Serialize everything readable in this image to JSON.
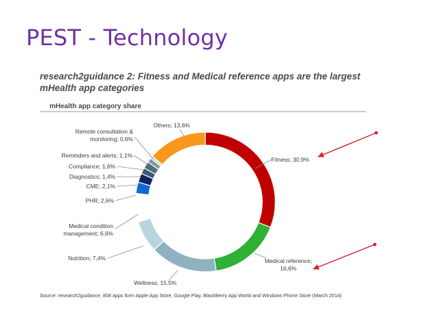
{
  "slide": {
    "title": "PEST - Technology"
  },
  "figure": {
    "heading_lines": [
      "research2guidance 2: Fitness and Medical reference apps are the largest",
      "mHealth app categories"
    ],
    "subheading": "mHealth app category share",
    "source": "Source: research2guidance,  808 apps form Apple App Store, Google Play, BlackBerry App World and Windows Phone Store (March 2014)"
  },
  "chart_data": {
    "type": "pie",
    "donut": true,
    "unit": "%",
    "slices": [
      {
        "label": "Fitness",
        "value": 30.9,
        "color": "#c00000",
        "label_lines": [
          "Fitness; 30,9%"
        ]
      },
      {
        "label": "Medical reference",
        "value": 16.6,
        "color": "#2eb135",
        "label_lines": [
          "Medical reference;",
          "16,6%"
        ]
      },
      {
        "label": "Wellness",
        "value": 15.5,
        "color": "#8fb2c0",
        "label_lines": [
          "Wellness; 15,5%"
        ]
      },
      {
        "label": "Nutrition",
        "value": 7.4,
        "color": "#b9d4df",
        "label_lines": [
          "Nutrition; 7,4%"
        ]
      },
      {
        "label": "Medical condition management",
        "value": 6.6,
        "color": "#ffffff",
        "label_lines": [
          "Medical condition",
          "management; 6,6%"
        ]
      },
      {
        "label": "PHR",
        "value": 2.6,
        "color": "#0c6ad3",
        "label_lines": [
          "PHR; 2,6%"
        ]
      },
      {
        "label": "CME",
        "value": 2.1,
        "color": "#13235f",
        "label_lines": [
          "CME; 2,1%"
        ]
      },
      {
        "label": "Diagnostics",
        "value": 1.4,
        "color": "#365c78",
        "label_lines": [
          "Diagnostics; 1,4%"
        ]
      },
      {
        "label": "Compliance",
        "value": 1.6,
        "color": "#4f6f75",
        "label_lines": [
          "Compliance; 1,6%"
        ]
      },
      {
        "label": "Reminders and alerts",
        "value": 1.1,
        "color": "#809ba0",
        "label_lines": [
          "Reminders and alerts; 1,1%"
        ]
      },
      {
        "label": "Remote consultation & monitoring",
        "value": 0.6,
        "color": "#c3d6da",
        "label_lines": [
          "Remote consultation &",
          "monitoring; 0,6%"
        ]
      },
      {
        "label": "Others",
        "value": 13.6,
        "color": "#f7981d",
        "label_lines": [
          "Others; 13,6%"
        ]
      }
    ]
  },
  "annotations": {
    "arrow_color": "#d41f2b",
    "arrows": [
      {
        "points_to": "Fitness"
      },
      {
        "points_to": "Medical reference"
      }
    ]
  }
}
